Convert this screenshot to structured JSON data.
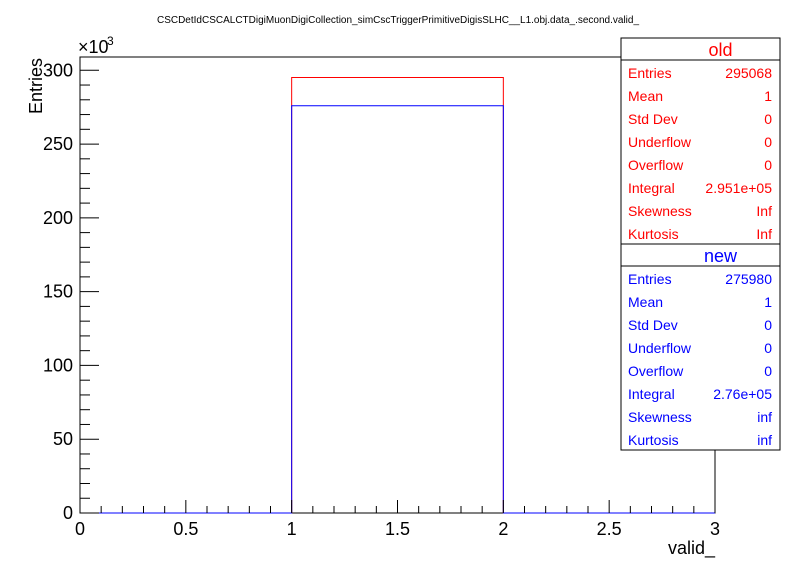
{
  "chart_data": {
    "type": "histogram",
    "title": "CSCDetIdCSCALCTDigiMuonDigiCollection_simCscTriggerPrimitiveDigisSLHC__L1.obj.data_.second.valid_",
    "xlabel": "valid_",
    "ylabel": "Entries",
    "y_multiplier_label": "×10",
    "y_multiplier_exponent": "3",
    "xlim": [
      0,
      3
    ],
    "ylim": [
      0,
      309000
    ],
    "x_ticks": [
      0,
      0.5,
      1,
      1.5,
      2,
      2.5,
      3
    ],
    "x_tick_labels": [
      "0",
      "0.5",
      "1",
      "1.5",
      "2",
      "2.5",
      "3"
    ],
    "y_ticks": [
      0,
      50000,
      100000,
      150000,
      200000,
      250000,
      300000
    ],
    "y_tick_labels": [
      "0",
      "50",
      "100",
      "150",
      "200",
      "250",
      "300"
    ],
    "bins": [
      1,
      2
    ],
    "series": [
      {
        "name": "old",
        "color": "#ff0000",
        "values": [
          295068
        ],
        "stats": [
          {
            "label": "Entries",
            "value": "295068"
          },
          {
            "label": "Mean",
            "value": "1"
          },
          {
            "label": "Std Dev",
            "value": "0"
          },
          {
            "label": "Underflow",
            "value": "0"
          },
          {
            "label": "Overflow",
            "value": "0"
          },
          {
            "label": "Integral",
            "value": "2.951e+05"
          },
          {
            "label": "Skewness",
            "value": "Inf"
          },
          {
            "label": "Kurtosis",
            "value": "Inf"
          }
        ]
      },
      {
        "name": "new",
        "color": "#0000ff",
        "values": [
          275980
        ],
        "stats": [
          {
            "label": "Entries",
            "value": "275980"
          },
          {
            "label": "Mean",
            "value": "1"
          },
          {
            "label": "Std Dev",
            "value": "0"
          },
          {
            "label": "Underflow",
            "value": "0"
          },
          {
            "label": "Overflow",
            "value": "0"
          },
          {
            "label": "Integral",
            "value": "2.76e+05"
          },
          {
            "label": "Skewness",
            "value": "inf"
          },
          {
            "label": "Kurtosis",
            "value": "inf"
          }
        ]
      }
    ],
    "legend_position": "top-right",
    "grid": false
  }
}
